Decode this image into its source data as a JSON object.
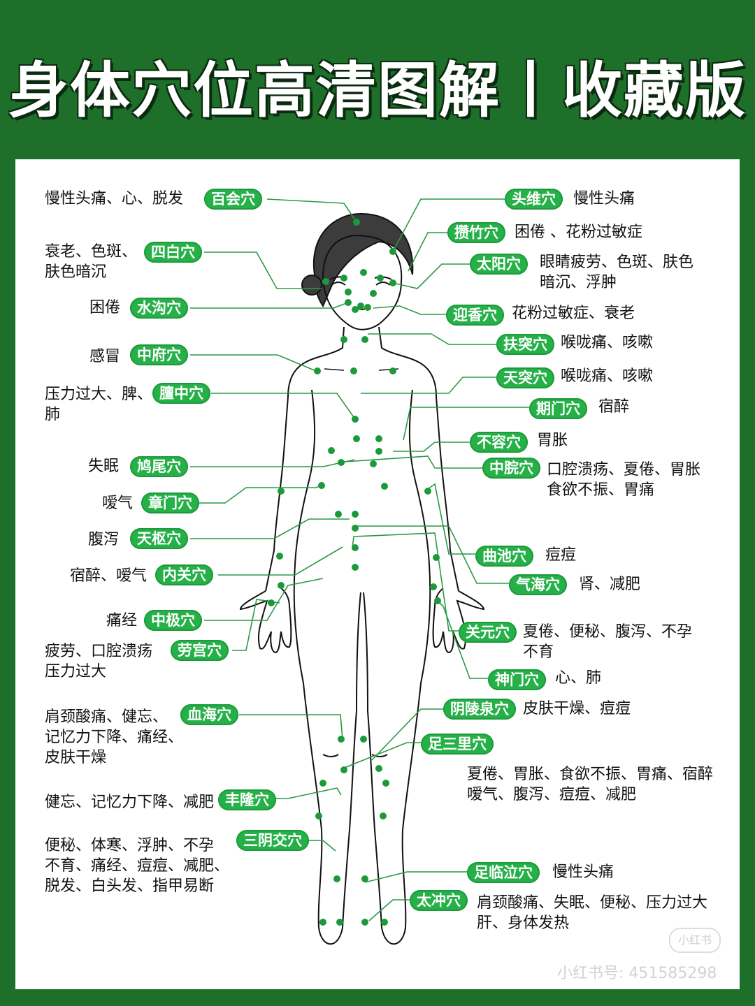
{
  "title": "身体穴位高清图解丨收藏版",
  "colors": {
    "background": "#1e6f2a",
    "label": "#26b048",
    "line": "#1a8a35",
    "point": "#1c9a3a"
  },
  "acupoints": [
    {
      "name": "百会穴",
      "desc": "慢性头痛、心、脱发"
    },
    {
      "name": "四白穴",
      "desc": "衰老、色斑、\n肤色暗沉"
    },
    {
      "name": "水沟穴",
      "desc": "困倦"
    },
    {
      "name": "中府穴",
      "desc": "感冒"
    },
    {
      "name": "膻中穴",
      "desc": "压力过大、脾、\n肺"
    },
    {
      "name": "鸠尾穴",
      "desc": "失眠"
    },
    {
      "name": "章门穴",
      "desc": "嗳气"
    },
    {
      "name": "天枢穴",
      "desc": "腹泻"
    },
    {
      "name": "内关穴",
      "desc": "宿醉、嗳气"
    },
    {
      "name": "中极穴",
      "desc": "痛经"
    },
    {
      "name": "劳宫穴",
      "desc": "疲劳、口腔溃疡\n压力过大"
    },
    {
      "name": "血海穴",
      "desc": "肩颈酸痛、健忘、\n记忆力下降、痛经、\n皮肤干燥"
    },
    {
      "name": "丰隆穴",
      "desc": "健忘、记忆力下降、减肥"
    },
    {
      "name": "三阴交穴",
      "desc": "便秘、体寒、浮肿、不孕\n不育、痛经、痘痘、减肥、\n脱发、白头发、指甲易断"
    },
    {
      "name": "头维穴",
      "desc": "慢性头痛"
    },
    {
      "name": "攒竹穴",
      "desc": "困倦 、花粉过敏症"
    },
    {
      "name": "太阳穴",
      "desc": "眼睛疲劳、色斑、肤色\n暗沉、浮肿"
    },
    {
      "name": "迎香穴",
      "desc": "花粉过敏症、衰老"
    },
    {
      "name": "扶突穴",
      "desc": "喉咙痛、咳嗽"
    },
    {
      "name": "天突穴",
      "desc": "喉咙痛、咳嗽"
    },
    {
      "name": "期门穴",
      "desc": "宿醉"
    },
    {
      "name": "不容穴",
      "desc": "胃胀"
    },
    {
      "name": "中脘穴",
      "desc": "口腔溃疡、夏倦、胃胀\n食欲不振、胃痛"
    },
    {
      "name": "曲池穴",
      "desc": "痘痘"
    },
    {
      "name": "气海穴",
      "desc": "肾、减肥"
    },
    {
      "name": "关元穴",
      "desc": "夏倦、便秘、腹泻、不孕\n不育"
    },
    {
      "name": "神门穴",
      "desc": "心、肺"
    },
    {
      "name": "阴陵泉穴",
      "desc": "皮肤干燥、痘痘"
    },
    {
      "name": "足三里穴",
      "desc": "夏倦、胃胀、食欲不振、胃痛、宿醉\n嗳气、腹泻、痘痘、减肥"
    },
    {
      "name": "足临泣穴",
      "desc": "慢性头痛"
    },
    {
      "name": "太冲穴",
      "desc": "肩颈酸痛、失眠、便秘、压力过大\n肝、身体发热"
    }
  ],
  "watermark": "小红书号: 451585298",
  "logo": "小红书",
  "brand": "小红书"
}
